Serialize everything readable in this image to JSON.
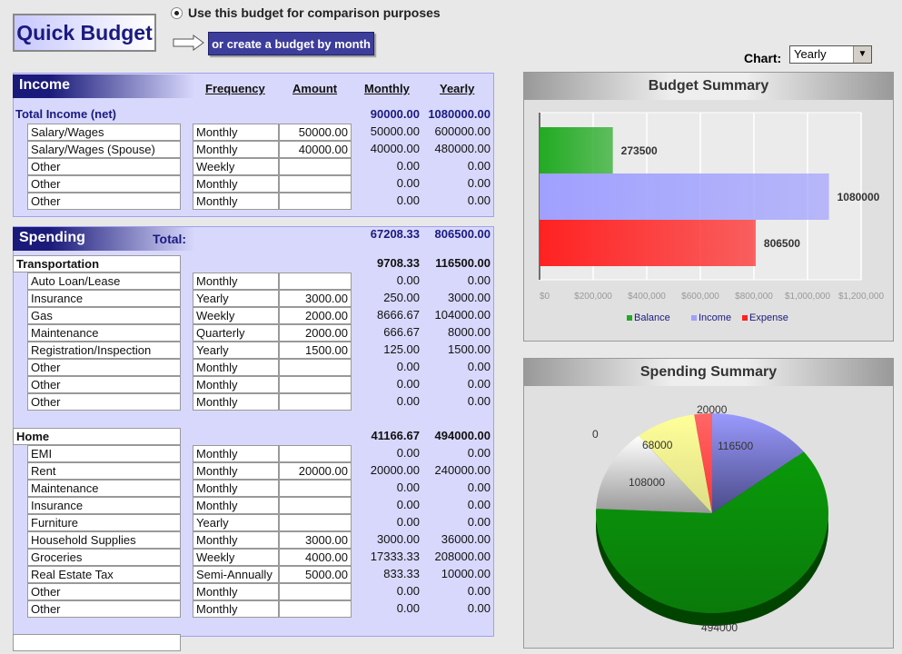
{
  "header": {
    "logo": "Quick Budget",
    "radio_label": "Use this budget for comparison purposes",
    "month_button": "or create  a budget by month"
  },
  "chart_selector": {
    "label": "Chart:",
    "value": "Yearly"
  },
  "income": {
    "title": "Income",
    "columns": [
      "Frequency",
      "Amount",
      "Monthly",
      "Yearly"
    ],
    "total_label": "Total Income (net)",
    "total_monthly": "90000.00",
    "total_yearly": "1080000.00",
    "rows": [
      [
        "Salary/Wages",
        "Monthly",
        "50000.00",
        "50000.00",
        "600000.00"
      ],
      [
        "Salary/Wages (Spouse)",
        "Monthly",
        "40000.00",
        "40000.00",
        "480000.00"
      ],
      [
        "Other",
        "Weekly",
        "",
        "0.00",
        "0.00"
      ],
      [
        "Other",
        "Monthly",
        "",
        "0.00",
        "0.00"
      ],
      [
        "Other",
        "Monthly",
        "",
        "0.00",
        "0.00"
      ]
    ]
  },
  "spending": {
    "title": "Spending",
    "total_label": "Total:",
    "total_monthly": "67208.33",
    "total_yearly": "806500.00",
    "groups": [
      {
        "name": "Transportation",
        "monthly": "9708.33",
        "yearly": "116500.00",
        "rows": [
          [
            "Auto Loan/Lease",
            "Monthly",
            "",
            "0.00",
            "0.00"
          ],
          [
            "Insurance",
            "Yearly",
            "3000.00",
            "250.00",
            "3000.00"
          ],
          [
            "Gas",
            "Weekly",
            "2000.00",
            "8666.67",
            "104000.00"
          ],
          [
            "Maintenance",
            "Quarterly",
            "2000.00",
            "666.67",
            "8000.00"
          ],
          [
            "Registration/Inspection",
            "Yearly",
            "1500.00",
            "125.00",
            "1500.00"
          ],
          [
            "Other",
            "Monthly",
            "",
            "0.00",
            "0.00"
          ],
          [
            "Other",
            "Monthly",
            "",
            "0.00",
            "0.00"
          ],
          [
            "Other",
            "Monthly",
            "",
            "0.00",
            "0.00"
          ]
        ]
      },
      {
        "name": "Home",
        "monthly": "41166.67",
        "yearly": "494000.00",
        "rows": [
          [
            "EMI",
            "Monthly",
            "",
            "0.00",
            "0.00"
          ],
          [
            "Rent",
            "Monthly",
            "20000.00",
            "20000.00",
            "240000.00"
          ],
          [
            "Maintenance",
            "Monthly",
            "",
            "0.00",
            "0.00"
          ],
          [
            "Insurance",
            "Monthly",
            "",
            "0.00",
            "0.00"
          ],
          [
            "Furniture",
            "Yearly",
            "",
            "0.00",
            "0.00"
          ],
          [
            "Household Supplies",
            "Monthly",
            "3000.00",
            "3000.00",
            "36000.00"
          ],
          [
            "Groceries",
            "Weekly",
            "4000.00",
            "17333.33",
            "208000.00"
          ],
          [
            "Real Estate Tax",
            "Semi-Annually",
            "5000.00",
            "833.33",
            "10000.00"
          ],
          [
            "Other",
            "Monthly",
            "",
            "0.00",
            "0.00"
          ],
          [
            "Other",
            "Monthly",
            "",
            "0.00",
            "0.00"
          ]
        ]
      }
    ]
  },
  "chart_data": [
    {
      "type": "bar",
      "orientation": "horizontal",
      "title": "Budget Summary",
      "categories": [
        "Balance",
        "Income",
        "Expense"
      ],
      "values": [
        273500,
        1080000,
        806500
      ],
      "data_labels": [
        "273500",
        "1080000",
        "806500"
      ],
      "colors": [
        "#22aa22",
        "#a0a0ff",
        "#ff2222"
      ],
      "xlim": [
        0,
        1200000
      ],
      "xticks": [
        "$0",
        "$200,000",
        "$400,000",
        "$600,000",
        "$800,000",
        "$1,000,000",
        "$1,200,000"
      ],
      "grid": true,
      "legend": "bottom"
    },
    {
      "type": "pie",
      "title": "Spending Summary",
      "values": [
        116500,
        494000,
        108000,
        0,
        68000,
        20000
      ],
      "data_labels": [
        "116500",
        "494000",
        "108000",
        "0",
        "68000",
        "20000"
      ],
      "colors": [
        "#9a9aff",
        "#0a9a0a",
        "#ffffff",
        "#eeeeee",
        "#ffff99",
        "#ff6666"
      ]
    }
  ]
}
